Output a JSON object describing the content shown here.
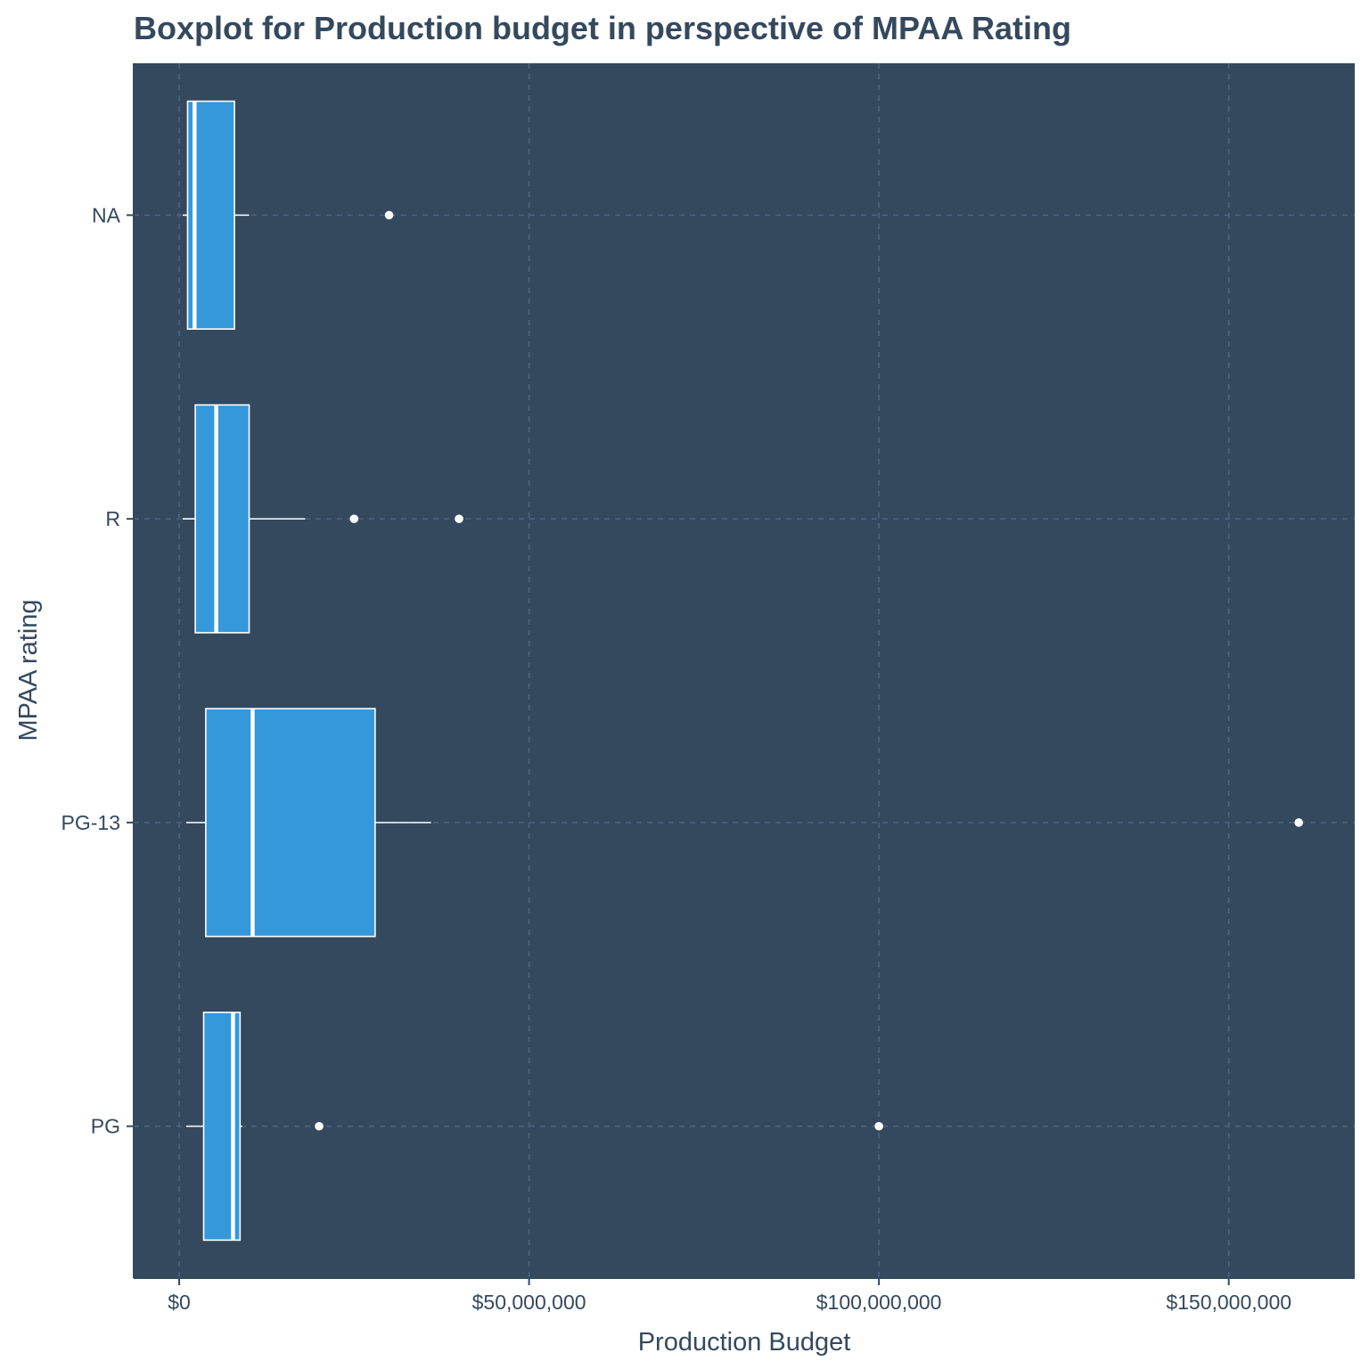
{
  "chart_data": {
    "type": "boxplot",
    "orientation": "horizontal",
    "title": "Boxplot for Production budget in perspective of MPAA Rating",
    "xlabel": "Production Budget",
    "ylabel": "MPAA rating",
    "xlim": [
      -6500000,
      168000000
    ],
    "x_ticks": [
      0,
      50000000,
      100000000,
      150000000
    ],
    "x_tick_labels": [
      "$0",
      "$50,000,000",
      "$100,000,000",
      "$150,000,000"
    ],
    "categories": [
      "NA",
      "R",
      "PG-13",
      "PG"
    ],
    "grid": true,
    "grid_style": "dashed",
    "legend": "none",
    "colors": {
      "panel_background": "#34495e",
      "box_fill": "#3498db",
      "box_stroke": "#ffffff",
      "grid": "#4d6480",
      "text": "#34495e",
      "axis_line": "#34495e"
    },
    "boxes": [
      {
        "category": "NA",
        "whisker_low": 500000,
        "q1": 1200000,
        "median": 2200000,
        "q3": 7900000,
        "whisker_high": 10000000,
        "outliers": [
          30000000
        ]
      },
      {
        "category": "R",
        "whisker_low": 500000,
        "q1": 2300000,
        "median": 5300000,
        "q3": 10000000,
        "whisker_high": 18000000,
        "outliers": [
          25000000,
          40000000
        ]
      },
      {
        "category": "PG-13",
        "whisker_low": 1000000,
        "q1": 3800000,
        "median": 10500000,
        "q3": 28000000,
        "whisker_high": 36000000,
        "outliers": [
          160000000
        ]
      },
      {
        "category": "PG",
        "whisker_low": 1000000,
        "q1": 3500000,
        "median": 7700000,
        "q3": 8700000,
        "whisker_high": 9000000,
        "outliers": [
          20000000,
          100000000
        ]
      }
    ]
  }
}
